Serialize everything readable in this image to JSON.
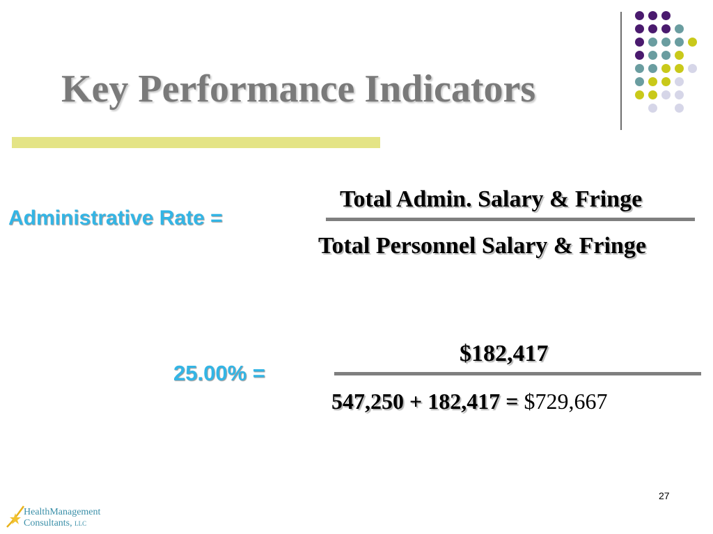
{
  "slide": {
    "title": "Key Performance Indicators",
    "page_number": "27"
  },
  "formula": {
    "label": "Administrative Rate =",
    "numerator": "Total Admin. Salary & Fringe",
    "denominator": "Total Personnel Salary & Fringe"
  },
  "calculation": {
    "label": "25.00% =",
    "numerator": "$182,417",
    "denominator_expression": "547,250 + 182,417 =",
    "denominator_total": "$729,667"
  },
  "logo": {
    "line1": "HealthManagement",
    "line2": "Consultants,",
    "suffix": "LLC"
  },
  "colors": {
    "purple": "#4a1a6e",
    "teal": "#6a9da0",
    "yellow": "#c9c91a",
    "lavender": "#d6d6e8",
    "label_blue": "#33b5e5",
    "accent_bar": "#e4e486"
  }
}
